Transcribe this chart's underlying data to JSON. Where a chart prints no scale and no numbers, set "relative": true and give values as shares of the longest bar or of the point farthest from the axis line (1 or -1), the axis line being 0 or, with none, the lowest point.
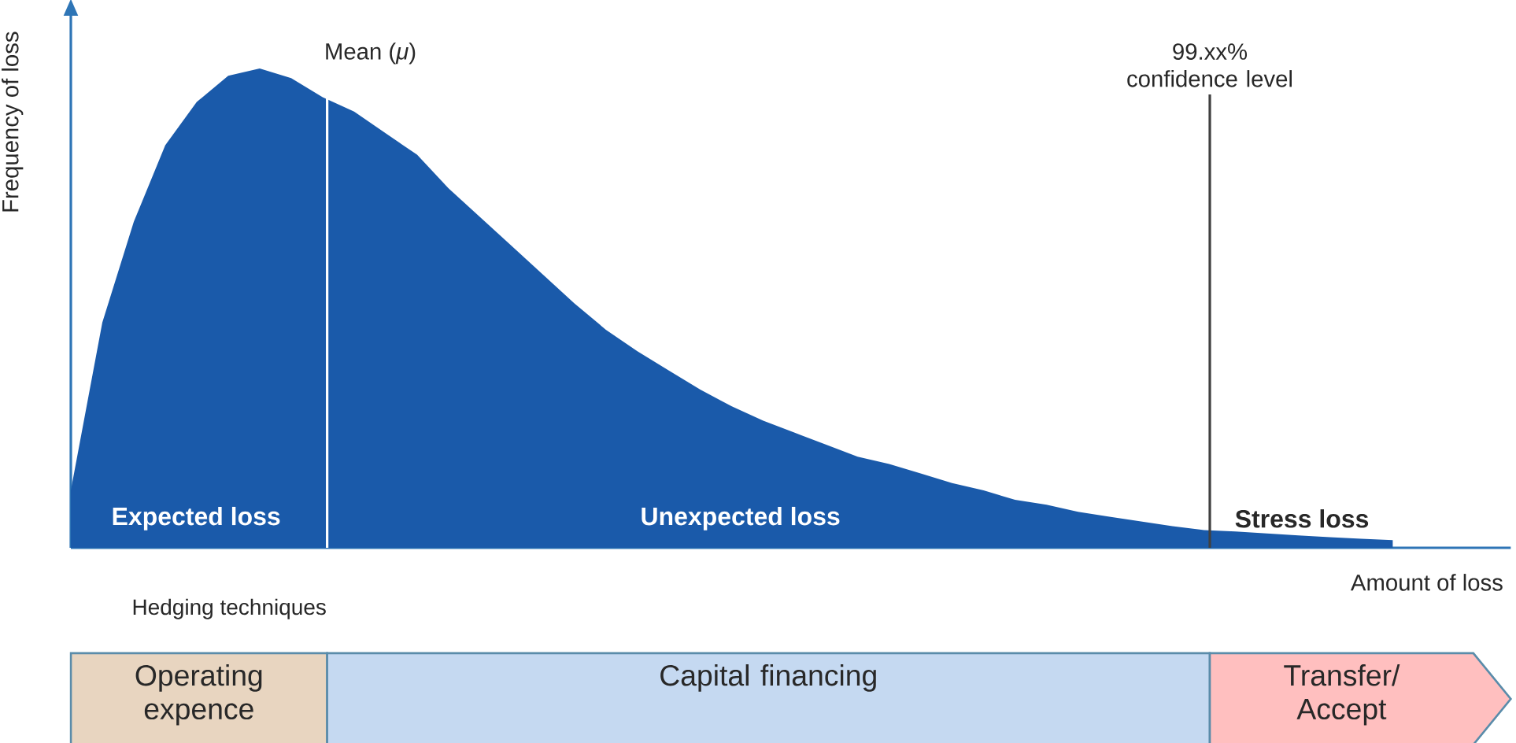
{
  "chart_data": {
    "type": "area",
    "relative": true,
    "xlabel": "Amount of loss",
    "ylabel": "Frequency of loss",
    "categories": [
      null,
      null,
      null,
      null,
      null,
      null,
      null,
      null,
      null,
      null,
      null,
      null,
      null,
      null,
      null,
      null,
      null,
      null,
      null,
      null,
      null,
      null,
      null,
      null,
      null,
      null,
      null,
      null,
      null,
      null,
      null,
      null,
      null,
      null,
      null,
      null,
      null,
      null,
      null,
      null,
      null,
      null,
      null
    ],
    "values": [
      0.12,
      0.47,
      0.68,
      0.84,
      0.93,
      0.985,
      1.0,
      0.98,
      0.94,
      0.91,
      0.865,
      0.82,
      0.75,
      0.69,
      0.63,
      0.57,
      0.51,
      0.455,
      0.41,
      0.37,
      0.33,
      0.295,
      0.265,
      0.24,
      0.215,
      0.19,
      0.175,
      0.155,
      0.135,
      0.12,
      0.1,
      0.09,
      0.075,
      0.065,
      0.055,
      0.045,
      0.037,
      0.034,
      0.03,
      0.026,
      0.022,
      0.019,
      0.016
    ],
    "color": "#1a5aaa",
    "tick_labels": false,
    "ref_lines": [
      {
        "axis": "x",
        "label": "Mean (*μ*)",
        "color": "#ffffff"
      },
      {
        "axis": "x",
        "label": "99.xx% confidence level",
        "color": "#404040"
      }
    ],
    "annotations": [
      "Expected loss",
      "Unexpected loss",
      "Stress loss",
      "Hedging techniques",
      "Operating expence",
      "Capital financing",
      "Transfer/ Accept"
    ]
  }
}
